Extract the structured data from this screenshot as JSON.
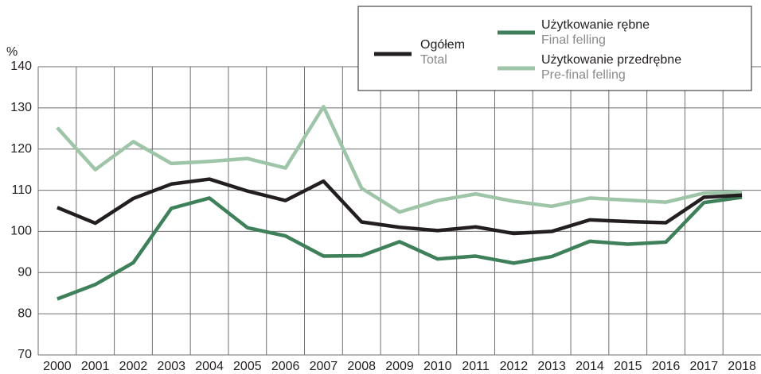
{
  "chart_data": {
    "type": "line",
    "y_label": "%",
    "categories": [
      "2000",
      "2001",
      "2002",
      "2003",
      "2004",
      "2005",
      "2006",
      "2007",
      "2008",
      "2009",
      "2010",
      "2011",
      "2012",
      "2013",
      "2014",
      "2015",
      "2016",
      "2017",
      "2018"
    ],
    "series": [
      {
        "name": "Ogółem",
        "name_en": "Total",
        "color": "#231f20",
        "values": [
          105.8,
          102,
          108,
          111.5,
          112.7,
          109.8,
          107.5,
          112.2,
          102.3,
          101,
          100.2,
          101.1,
          99.5,
          100,
          102.8,
          102.4,
          102.1,
          108.3,
          108.8
        ]
      },
      {
        "name": "Użytkowanie rębne",
        "name_en": "Final felling",
        "color": "#3d8059",
        "values": [
          83.6,
          87.1,
          92.4,
          105.6,
          108.1,
          100.9,
          98.9,
          94,
          94.1,
          97.5,
          93.3,
          94,
          92.3,
          93.9,
          97.6,
          96.9,
          97.4,
          107,
          108.3
        ]
      },
      {
        "name": "Użytkowanie przedrębne",
        "name_en": "Pre-final felling",
        "color": "#9ec5a8",
        "values": [
          125.2,
          115,
          121.8,
          116.5,
          117,
          117.7,
          115.4,
          130.3,
          110.5,
          104.7,
          107.5,
          109.1,
          107.3,
          106.1,
          108.1,
          107.6,
          107.1,
          109.3,
          109.6
        ]
      }
    ],
    "ylim": [
      70,
      140
    ],
    "yticks": [
      70,
      80,
      90,
      100,
      110,
      120,
      130,
      140
    ],
    "grid": true,
    "legend": "top-right"
  }
}
